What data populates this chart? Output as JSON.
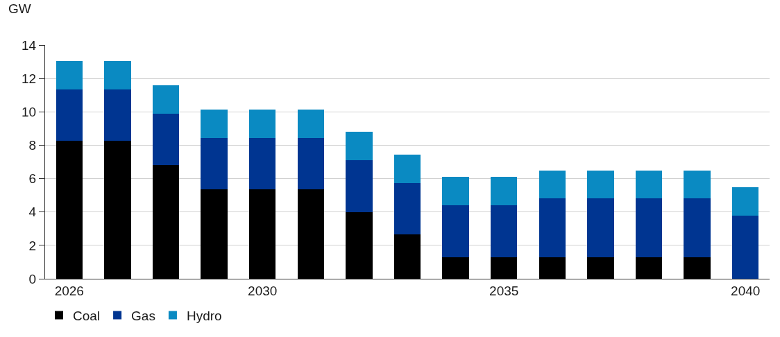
{
  "chart_data": {
    "type": "bar",
    "stacked": true,
    "ylabel": "GW",
    "x": [
      2026,
      2027,
      2028,
      2029,
      2030,
      2031,
      2032,
      2033,
      2034,
      2035,
      2036,
      2037,
      2038,
      2039,
      2040
    ],
    "xlim": [
      2025.5,
      2040.5
    ],
    "xticks": [
      2026,
      2030,
      2035,
      2040
    ],
    "ylim": [
      0,
      14
    ],
    "yticks": [
      0,
      2,
      4,
      6,
      8,
      10,
      12,
      14
    ],
    "grid": "y",
    "legend": "bottom left",
    "series": [
      {
        "name": "Coal",
        "color": "#000000",
        "values": [
          8.25,
          8.25,
          6.8,
          5.35,
          5.35,
          5.35,
          4.0,
          2.65,
          1.3,
          1.3,
          1.3,
          1.3,
          1.3,
          1.3,
          0
        ]
      },
      {
        "name": "Gas",
        "color": "#003591",
        "values": [
          3.1,
          3.1,
          3.1,
          3.1,
          3.1,
          3.1,
          3.1,
          3.1,
          3.1,
          3.1,
          3.5,
          3.5,
          3.5,
          3.5,
          3.8
        ]
      },
      {
        "name": "Hydro",
        "color": "#0a8ac2",
        "values": [
          1.7,
          1.7,
          1.7,
          1.7,
          1.7,
          1.7,
          1.7,
          1.7,
          1.7,
          1.7,
          1.7,
          1.7,
          1.7,
          1.7,
          1.7
        ]
      }
    ]
  }
}
